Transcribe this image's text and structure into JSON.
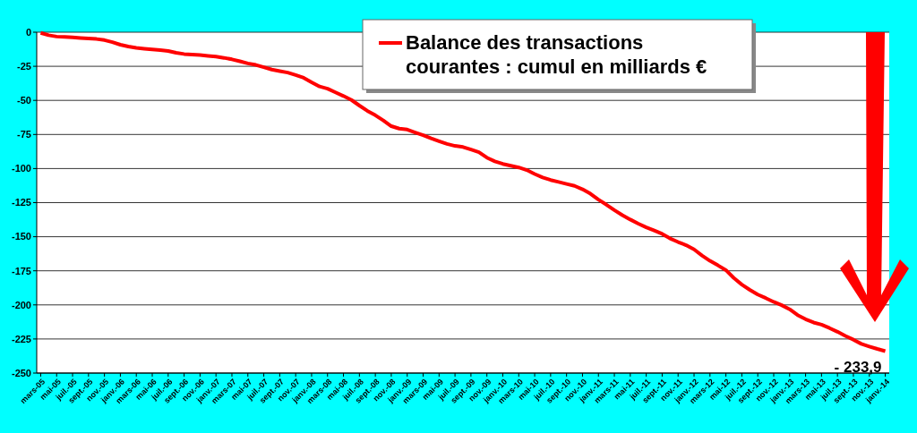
{
  "chart_data": {
    "type": "line",
    "categories": [
      "mars-05",
      null,
      "mai-05",
      null,
      "juil.-05",
      null,
      "sept.-05",
      null,
      "nov.-05",
      null,
      "janv.-06",
      null,
      "mars-06",
      null,
      "mai-06",
      null,
      "juil.-06",
      null,
      "sept.-06",
      null,
      "nov.-06",
      null,
      "janv.-07",
      null,
      "mars-07",
      null,
      "mai-07",
      null,
      "juil.-07",
      null,
      "sept.-07",
      null,
      "nov.-07",
      null,
      "janv.-08",
      null,
      "mars-08",
      null,
      "mai-08",
      null,
      "juil.-08",
      null,
      "sept.-08",
      null,
      "nov.-08",
      null,
      "janv.-09",
      null,
      "mars-09",
      null,
      "mai-09",
      null,
      "juil.-09",
      null,
      "sept.-09",
      null,
      "nov.-09",
      null,
      "janv.-10",
      null,
      "mars-10",
      null,
      "mai-10",
      null,
      "juil.-10",
      null,
      "sept.-10",
      null,
      "nov.-10",
      null,
      "janv.-11",
      null,
      "mars-11",
      null,
      "mai-11",
      null,
      "juil.-11",
      null,
      "sept.-11",
      null,
      "nov.-11",
      null,
      "janv.-12",
      null,
      "mars-12",
      null,
      "mai-12",
      null,
      "juil.-12",
      null,
      "sept.-12",
      null,
      "nov.-12",
      null,
      "janv.-13",
      null,
      "mars-13",
      null,
      "mai-13",
      null,
      "juil.-13",
      null,
      "sept.-13",
      null,
      "nov.-13",
      null,
      "janv.-14"
    ],
    "series": [
      {
        "name": "Balance des transactions courantes : cumul en milliards €",
        "color": "#ff0000",
        "values": [
          -0.5,
          -2.2,
          -3.2,
          -3.5,
          -3.8,
          -4.2,
          -4.6,
          -5.0,
          -5.8,
          -7.3,
          -9.2,
          -10.5,
          -11.5,
          -12.1,
          -12.7,
          -13.2,
          -13.8,
          -15.1,
          -16,
          -16.4,
          -16.8,
          -17.4,
          -17.9,
          -18.8,
          -19.9,
          -21.3,
          -22.9,
          -24,
          -25.7,
          -27.4,
          -28.5,
          -29.6,
          -31.4,
          -33.4,
          -36.7,
          -39.8,
          -41.4,
          -44.1,
          -46.8,
          -49.7,
          -53.8,
          -57.7,
          -60.9,
          -64.7,
          -68.9,
          -70.7,
          -71.4,
          -73.5,
          -75.5,
          -77.8,
          -79.9,
          -81.9,
          -83.4,
          -84.2,
          -86.1,
          -88,
          -92,
          -94.7,
          -96.6,
          -97.9,
          -99.2,
          -101.1,
          -104,
          -106.5,
          -108.4,
          -109.8,
          -111.3,
          -112.7,
          -115.2,
          -118.5,
          -122.8,
          -126.5,
          -130.5,
          -134.2,
          -137.4,
          -140.4,
          -143.1,
          -145.4,
          -147.9,
          -151.3,
          -153.9,
          -156.2,
          -159.3,
          -163.8,
          -167.7,
          -171,
          -174.5,
          -180.3,
          -185.1,
          -189,
          -192.4,
          -195,
          -197.8,
          -200.2,
          -203.2,
          -207.5,
          -210.5,
          -212.9,
          -214.5,
          -217,
          -219.7,
          -222.8,
          -225.5,
          -228.6,
          -230.5,
          -232.3,
          -233.9
        ]
      }
    ],
    "ylim": [
      -250,
      0
    ],
    "yticks": [
      0,
      -25,
      -50,
      -75,
      -100,
      -125,
      -150,
      -175,
      -200,
      -225,
      -250
    ],
    "grid": "y",
    "legend": "top right",
    "marker": "none",
    "line_style": "solid",
    "annotations": [
      {
        "text": "- 233,9",
        "x": "janv.-14",
        "y": -233.9
      }
    ]
  }
}
